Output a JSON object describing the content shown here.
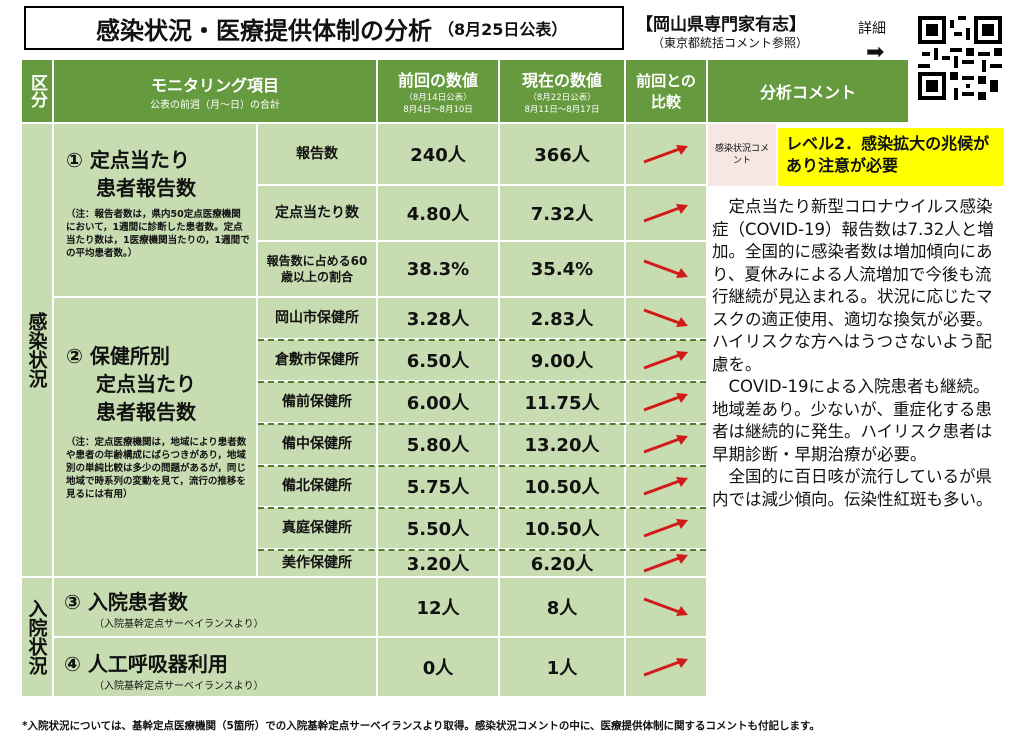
{
  "header": {
    "title": "感染状況・医療提供体制の分析",
    "date": "（8月25日公表）",
    "author": "【岡山県専門家有志】",
    "author_note": "（東京都統括コメント参照）",
    "detail_label": "詳細",
    "detail_arrow": "➡"
  },
  "columns": {
    "category": "区分",
    "item": "モニタリング項目",
    "item_sub": "公表の前週（月～日）の合計",
    "prev": "前回の数値",
    "prev_sub1": "（8月14日公表）",
    "prev_sub2": "8月4日～8月10日",
    "curr": "現在の数値",
    "curr_sub1": "（8月22日公表）",
    "curr_sub2": "8月11日～8月17日",
    "compare": "前回との比較",
    "comment": "分析コメント"
  },
  "sections": {
    "infection": "感染状況",
    "hospital": "入院状況"
  },
  "items": {
    "i1_title1": "① 定点当たり",
    "i1_title2": "患者報告数",
    "i1_note": "（注：報告者数は，県内50定点医療機関において，1週間に診断した患者数。定点当たり数は，1医療機関当たりの，1週間での平均患者数。）",
    "i2_title1": "② 保健所別",
    "i2_title2": "定点当たり",
    "i2_title3": "患者報告数",
    "i2_note": "（注：定点医療機関は，地域により患者数や患者の年齢構成にばらつきがあり，地域別の単純比較は多少の問題があるが，同じ地域で時系列の変動を見て，流行の推移を見るには有用）",
    "i3_title": "③ 入院患者数",
    "i3_note": "（入院基幹定点サーベイランスより）",
    "i4_title": "④ 人工呼吸器利用",
    "i4_note": "（入院基幹定点サーベイランスより）"
  },
  "rows": [
    {
      "label": "報告数",
      "prev": "240人",
      "curr": "366人",
      "trend": "up"
    },
    {
      "label": "定点当たり数",
      "prev": "4.80人",
      "curr": "7.32人",
      "trend": "up"
    },
    {
      "label": "報告数に占める60歳以上の割合",
      "prev": "38.3%",
      "curr": "35.4%",
      "trend": "down"
    },
    {
      "label": "岡山市保健所",
      "prev": "3.28人",
      "curr": "2.83人",
      "trend": "down"
    },
    {
      "label": "倉敷市保健所",
      "prev": "6.50人",
      "curr": "9.00人",
      "trend": "up"
    },
    {
      "label": "備前保健所",
      "prev": "6.00人",
      "curr": "11.75人",
      "trend": "up"
    },
    {
      "label": "備中保健所",
      "prev": "5.80人",
      "curr": "13.20人",
      "trend": "up"
    },
    {
      "label": "備北保健所",
      "prev": "5.75人",
      "curr": "10.50人",
      "trend": "up"
    },
    {
      "label": "真庭保健所",
      "prev": "5.50人",
      "curr": "10.50人",
      "trend": "up"
    },
    {
      "label": "美作保健所",
      "prev": "3.20人",
      "curr": "6.20人",
      "trend": "up"
    },
    {
      "label": "",
      "prev": "12人",
      "curr": "8人",
      "trend": "down"
    },
    {
      "label": "",
      "prev": "0人",
      "curr": "1人",
      "trend": "up"
    }
  ],
  "comment": {
    "tag": "感染状況コメント",
    "level": "レベル2．感染拡大の兆候があり注意が必要",
    "p1": "定点当たり新型コロナウイルス感染症（COVID-19）報告数は7.32人と増加。全国的に感染者数は増加傾向にあり、夏休みによる人流増加で今後も流行継続が見込まれる。状況に応じたマスクの適正使用、適切な換気が必要。ハイリスクな方へはうつさないよう配慮を。",
    "p2": "COVID-19による入院患者も継続。地域差あり。少ないが、重症化する患者は継続的に発生。ハイリスク患者は早期診断・早期治療が必要。",
    "p3": "全国的に百日咳が流行しているが県内では減少傾向。伝染性紅斑も多い。"
  },
  "footer": "*入院状況については、基幹定点医療機関（5箇所）での入院基幹定点サーベイランスより取得。感染状況コメントの中に、医療提供体制に関するコメントも付記します。",
  "colors": {
    "green": "#669a3e",
    "light_green": "#c8dcb1",
    "arrow": "#d11a1a",
    "level_bg": "#ffff00"
  }
}
